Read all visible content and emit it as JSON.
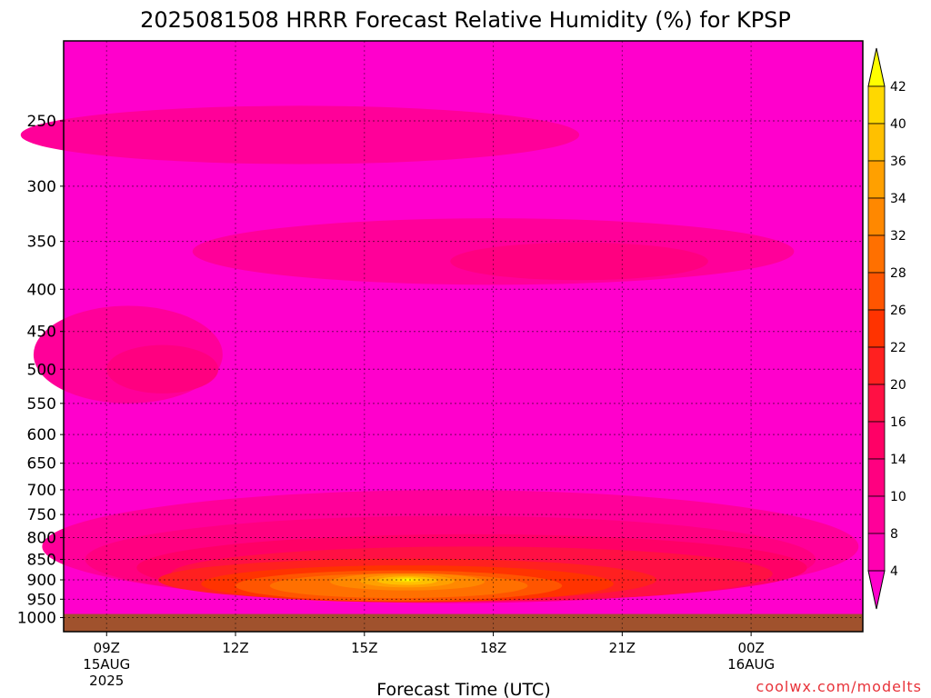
{
  "chart_data": {
    "type": "heatmap",
    "title": "2025081508 HRRR Forecast Relative Humidity (%) for KPSP",
    "xlabel": "Forecast Time (UTC)",
    "ylabel": "",
    "credit": "coolwx.com/modelts",
    "y_scale": "log-pressure",
    "ylim": [
      200,
      1040
    ],
    "y_ticks": [
      {
        "value": 250,
        "label": "250"
      },
      {
        "value": 300,
        "label": "300"
      },
      {
        "value": 350,
        "label": "350"
      },
      {
        "value": 400,
        "label": "400"
      },
      {
        "value": 450,
        "label": "450"
      },
      {
        "value": 500,
        "label": "500"
      },
      {
        "value": 550,
        "label": "550"
      },
      {
        "value": 600,
        "label": "600"
      },
      {
        "value": 650,
        "label": "650"
      },
      {
        "value": 700,
        "label": "700"
      },
      {
        "value": 750,
        "label": "750"
      },
      {
        "value": 800,
        "label": "800"
      },
      {
        "value": 850,
        "label": "850"
      },
      {
        "value": 900,
        "label": "900"
      },
      {
        "value": 950,
        "label": "950"
      },
      {
        "value": 1000,
        "label": "1000"
      }
    ],
    "xlim": [
      8,
      26.6
    ],
    "x_ticks": [
      {
        "value": 9,
        "label": "09Z",
        "sub": [
          "15AUG",
          "2025"
        ]
      },
      {
        "value": 12,
        "label": "12Z",
        "sub": []
      },
      {
        "value": 15,
        "label": "15Z",
        "sub": []
      },
      {
        "value": 18,
        "label": "18Z",
        "sub": []
      },
      {
        "value": 21,
        "label": "21Z",
        "sub": []
      },
      {
        "value": 24,
        "label": "00Z",
        "sub": [
          "16AUG"
        ]
      }
    ],
    "grid": true,
    "ground_pressure": 990,
    "colorbar": {
      "levels": [
        4,
        8,
        10,
        14,
        16,
        20,
        22,
        26,
        28,
        32,
        34,
        36,
        40,
        42
      ],
      "colors": [
        "#ff00cc",
        "#ff00b0",
        "#ff0099",
        "#ff0080",
        "#ff0066",
        "#ff1044",
        "#ff2020",
        "#ff3300",
        "#ff5500",
        "#ff7000",
        "#ff8800",
        "#ffa000",
        "#ffc000",
        "#ffd800",
        "#ffff00"
      ]
    },
    "ground_color": "#a0522d",
    "regions": [
      {
        "level": 8,
        "cx": 13.5,
        "p": 260,
        "rx": 6.5,
        "rp": 22
      },
      {
        "level": 8,
        "cx": 18.0,
        "p": 360,
        "rx": 7.0,
        "rp": 35
      },
      {
        "level": 8,
        "cx": 9.5,
        "p": 480,
        "rx": 2.2,
        "rp": 70
      },
      {
        "level": 8,
        "cx": 17.0,
        "p": 820,
        "rx": 9.5,
        "rp": 140
      },
      {
        "level": 10,
        "cx": 10.3,
        "p": 500,
        "rx": 1.3,
        "rp": 35
      },
      {
        "level": 10,
        "cx": 20.0,
        "p": 370,
        "rx": 3.0,
        "rp": 20
      },
      {
        "level": 10,
        "cx": 17.0,
        "p": 850,
        "rx": 8.5,
        "rp": 110
      },
      {
        "level": 14,
        "cx": 17.5,
        "p": 870,
        "rx": 7.8,
        "rp": 85
      },
      {
        "level": 16,
        "cx": 17.5,
        "p": 885,
        "rx": 7.0,
        "rp": 70
      },
      {
        "level": 20,
        "cx": 16.0,
        "p": 900,
        "rx": 5.8,
        "rp": 55
      },
      {
        "level": 22,
        "cx": 16.0,
        "p": 910,
        "rx": 4.8,
        "rp": 48
      },
      {
        "level": 26,
        "cx": 15.8,
        "p": 915,
        "rx": 3.8,
        "rp": 40
      },
      {
        "level": 28,
        "cx": 15.8,
        "p": 915,
        "rx": 3.0,
        "rp": 32
      },
      {
        "level": 32,
        "cx": 16.0,
        "p": 905,
        "rx": 1.8,
        "rp": 22
      },
      {
        "level": 34,
        "cx": 16.0,
        "p": 903,
        "rx": 1.1,
        "rp": 16
      },
      {
        "level": 36,
        "cx": 16.0,
        "p": 902,
        "rx": 0.7,
        "rp": 11
      },
      {
        "level": 40,
        "cx": 16.0,
        "p": 900,
        "rx": 0.35,
        "rp": 6
      },
      {
        "level": 42,
        "cx": 16.0,
        "p": 900,
        "rx": 0.12,
        "rp": 3
      }
    ]
  }
}
